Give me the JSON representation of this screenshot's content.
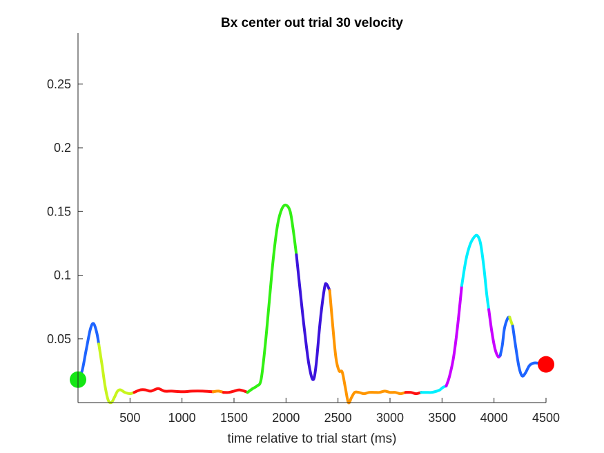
{
  "chart_data": {
    "type": "line",
    "title": "Bx  center out trial 30 velocity",
    "xlabel": "time relative to trial start (ms)",
    "ylabel": "",
    "xlim": [
      0,
      4500
    ],
    "ylim": [
      0,
      0.29
    ],
    "grid": false,
    "legend": "none",
    "x_ticks": [
      500,
      1000,
      1500,
      2000,
      2500,
      3000,
      3500,
      4000,
      4500
    ],
    "x_tick_labels": [
      "500",
      "1000",
      "1500",
      "2000",
      "2500",
      "3000",
      "3500",
      "4000",
      "4500"
    ],
    "y_ticks": [
      0.05,
      0.1,
      0.15,
      0.2,
      0.25
    ],
    "y_tick_labels": [
      "0.05",
      "0.1",
      "0.15",
      "0.2",
      "0.25"
    ],
    "segments": [
      {
        "color": "#1e64ff",
        "points": [
          [
            0,
            0.018
          ],
          [
            40,
            0.025
          ],
          [
            80,
            0.042
          ],
          [
            120,
            0.058
          ],
          [
            150,
            0.062
          ],
          [
            180,
            0.055
          ],
          [
            200,
            0.046
          ]
        ]
      },
      {
        "color": "#c8f51e",
        "points": [
          [
            200,
            0.046
          ],
          [
            230,
            0.03
          ],
          [
            260,
            0.013
          ],
          [
            290,
            0.002
          ],
          [
            320,
            0.0
          ],
          [
            350,
            0.004
          ],
          [
            380,
            0.009
          ],
          [
            410,
            0.01
          ],
          [
            450,
            0.008
          ],
          [
            500,
            0.007
          ],
          [
            540,
            0.008
          ]
        ]
      },
      {
        "color": "#ff1010",
        "points": [
          [
            540,
            0.008
          ],
          [
            600,
            0.01
          ],
          [
            650,
            0.01
          ],
          [
            700,
            0.009
          ],
          [
            770,
            0.011
          ],
          [
            830,
            0.009
          ],
          [
            900,
            0.009
          ],
          [
            1000,
            0.0085
          ],
          [
            1100,
            0.009
          ],
          [
            1200,
            0.009
          ],
          [
            1300,
            0.0085
          ]
        ]
      },
      {
        "color": "#ff9600",
        "points": [
          [
            1300,
            0.0085
          ],
          [
            1350,
            0.009
          ],
          [
            1400,
            0.008
          ]
        ]
      },
      {
        "color": "#ff1010",
        "points": [
          [
            1400,
            0.008
          ],
          [
            1450,
            0.008
          ],
          [
            1500,
            0.009
          ],
          [
            1550,
            0.01
          ],
          [
            1600,
            0.009
          ],
          [
            1630,
            0.008
          ]
        ]
      },
      {
        "color": "#32f014",
        "points": [
          [
            1630,
            0.008
          ],
          [
            1680,
            0.011
          ],
          [
            1720,
            0.013
          ],
          [
            1760,
            0.018
          ],
          [
            1800,
            0.045
          ],
          [
            1840,
            0.08
          ],
          [
            1880,
            0.115
          ],
          [
            1920,
            0.14
          ],
          [
            1960,
            0.152
          ],
          [
            2000,
            0.155
          ],
          [
            2040,
            0.15
          ],
          [
            2070,
            0.135
          ],
          [
            2100,
            0.116
          ]
        ]
      },
      {
        "color": "#3c14dc",
        "points": [
          [
            2100,
            0.116
          ],
          [
            2140,
            0.085
          ],
          [
            2180,
            0.055
          ],
          [
            2220,
            0.03
          ],
          [
            2260,
            0.018
          ],
          [
            2290,
            0.03
          ],
          [
            2330,
            0.065
          ],
          [
            2370,
            0.09
          ],
          [
            2390,
            0.093
          ],
          [
            2420,
            0.088
          ]
        ]
      },
      {
        "color": "#ff9600",
        "points": [
          [
            2420,
            0.088
          ],
          [
            2450,
            0.06
          ],
          [
            2480,
            0.035
          ],
          [
            2510,
            0.025
          ],
          [
            2540,
            0.024
          ],
          [
            2570,
            0.012
          ],
          [
            2600,
            0.0
          ],
          [
            2630,
            0.004
          ],
          [
            2660,
            0.008
          ],
          [
            2700,
            0.008
          ],
          [
            2750,
            0.007
          ],
          [
            2800,
            0.008
          ],
          [
            2850,
            0.008
          ],
          [
            2900,
            0.008
          ],
          [
            2950,
            0.009
          ],
          [
            3000,
            0.008
          ],
          [
            3050,
            0.008
          ],
          [
            3100,
            0.007
          ],
          [
            3150,
            0.008
          ]
        ]
      },
      {
        "color": "#ff1010",
        "points": [
          [
            3150,
            0.008
          ],
          [
            3200,
            0.008
          ],
          [
            3250,
            0.007
          ],
          [
            3300,
            0.008
          ]
        ]
      },
      {
        "color": "#00f0ff",
        "points": [
          [
            3300,
            0.008
          ],
          [
            3350,
            0.008
          ],
          [
            3400,
            0.008
          ],
          [
            3450,
            0.009
          ],
          [
            3480,
            0.01
          ],
          [
            3510,
            0.012
          ],
          [
            3540,
            0.013
          ]
        ]
      },
      {
        "color": "#c800ff",
        "points": [
          [
            3540,
            0.013
          ],
          [
            3570,
            0.02
          ],
          [
            3610,
            0.035
          ],
          [
            3650,
            0.06
          ],
          [
            3690,
            0.092
          ]
        ]
      },
      {
        "color": "#00f0ff",
        "points": [
          [
            3690,
            0.092
          ],
          [
            3730,
            0.112
          ],
          [
            3770,
            0.124
          ],
          [
            3810,
            0.13
          ],
          [
            3840,
            0.131
          ],
          [
            3870,
            0.125
          ],
          [
            3900,
            0.108
          ],
          [
            3930,
            0.085
          ],
          [
            3950,
            0.073
          ]
        ]
      },
      {
        "color": "#c800ff",
        "points": [
          [
            3950,
            0.073
          ],
          [
            3980,
            0.055
          ],
          [
            4010,
            0.042
          ],
          [
            4040,
            0.036
          ],
          [
            4060,
            0.037
          ]
        ]
      },
      {
        "color": "#1e64ff",
        "points": [
          [
            4060,
            0.037
          ],
          [
            4080,
            0.045
          ],
          [
            4100,
            0.058
          ],
          [
            4130,
            0.066
          ],
          [
            4150,
            0.067
          ]
        ]
      },
      {
        "color": "#c8f51e",
        "points": [
          [
            4150,
            0.067
          ],
          [
            4180,
            0.06
          ]
        ]
      },
      {
        "color": "#1e64ff",
        "points": [
          [
            4180,
            0.06
          ],
          [
            4210,
            0.043
          ],
          [
            4240,
            0.028
          ],
          [
            4270,
            0.021
          ],
          [
            4300,
            0.023
          ],
          [
            4340,
            0.029
          ],
          [
            4380,
            0.031
          ],
          [
            4420,
            0.031
          ],
          [
            4460,
            0.03
          ],
          [
            4500,
            0.03
          ]
        ]
      }
    ],
    "markers": [
      {
        "label": "start",
        "x": 0,
        "y": 0.018,
        "color": "#14e614"
      },
      {
        "label": "end",
        "x": 4500,
        "y": 0.03,
        "color": "#ff0000"
      }
    ]
  }
}
